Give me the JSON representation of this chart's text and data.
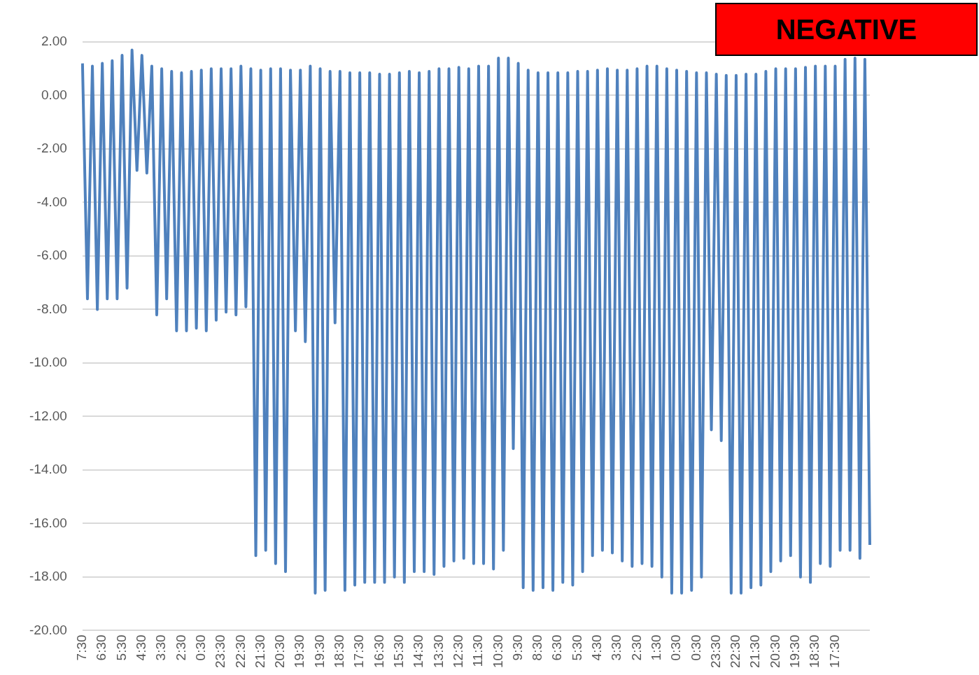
{
  "chart_data": {
    "type": "line",
    "annotations": [
      "NEGATIVE"
    ],
    "categories": [
      "7:30",
      null,
      null,
      null,
      "6:30",
      null,
      null,
      null,
      "5:30",
      null,
      null,
      null,
      "4:30",
      null,
      null,
      null,
      "3:30",
      null,
      null,
      null,
      "2:30",
      null,
      null,
      null,
      "0:30",
      null,
      null,
      null,
      "23:30",
      null,
      null,
      null,
      "22:30",
      null,
      null,
      null,
      "21:30",
      null,
      null,
      null,
      "20:30",
      null,
      null,
      null,
      "19:30",
      null,
      null,
      null,
      "19:30",
      null,
      null,
      null,
      "18:30",
      null,
      null,
      null,
      "17:30",
      null,
      null,
      null,
      "16:30",
      null,
      null,
      null,
      "15:30",
      null,
      null,
      null,
      "14:30",
      null,
      null,
      null,
      "13:30",
      null,
      null,
      null,
      "12:30",
      null,
      null,
      null,
      "11:30",
      null,
      null,
      null,
      "10:30",
      null,
      null,
      null,
      "9:30",
      null,
      null,
      null,
      "8:30",
      null,
      null,
      null,
      "6:30",
      null,
      null,
      null,
      "5:30",
      null,
      null,
      null,
      "4:30",
      null,
      null,
      null,
      "3:30",
      null,
      null,
      null,
      "2:30",
      null,
      null,
      null,
      "1:30",
      null,
      null,
      null,
      "0:30",
      null,
      null,
      null,
      "0:30",
      null,
      null,
      null,
      "23:30",
      null,
      null,
      null,
      "22:30",
      null,
      null,
      null,
      "21:30",
      null,
      null,
      null,
      "20:30",
      null,
      null,
      null,
      "19:30",
      null,
      null,
      null,
      "18:30",
      null,
      null,
      null,
      "17:30",
      null,
      null,
      null,
      null,
      null,
      null,
      null
    ],
    "series": [
      {
        "color": "#4f81bd",
        "values": [
          1.2,
          -7.6,
          1.1,
          -8.0,
          1.2,
          -7.6,
          1.3,
          -7.6,
          1.5,
          -7.2,
          1.7,
          -2.8,
          1.5,
          -2.9,
          1.1,
          -8.2,
          1.0,
          -7.6,
          0.9,
          -8.8,
          0.85,
          -8.8,
          0.9,
          -8.7,
          0.95,
          -8.8,
          1.0,
          -8.4,
          1.0,
          -8.1,
          1.0,
          -8.2,
          1.1,
          -7.9,
          1.0,
          -17.2,
          0.95,
          -17.0,
          1.0,
          -17.5,
          1.0,
          -17.8,
          0.95,
          -8.8,
          0.95,
          -9.2,
          1.1,
          -18.6,
          1.0,
          -18.5,
          0.9,
          -8.5,
          0.9,
          -18.5,
          0.85,
          -18.3,
          0.85,
          -18.2,
          0.85,
          -18.2,
          0.8,
          -18.2,
          0.8,
          -18.0,
          0.85,
          -18.2,
          0.9,
          -17.8,
          0.85,
          -17.8,
          0.9,
          -17.9,
          1.0,
          -17.6,
          1.0,
          -17.4,
          1.05,
          -17.3,
          1.0,
          -17.5,
          1.1,
          -17.5,
          1.1,
          -17.7,
          1.4,
          -17.0,
          1.4,
          -13.2,
          1.2,
          -18.4,
          0.95,
          -18.5,
          0.85,
          -18.4,
          0.85,
          -18.5,
          0.85,
          -18.2,
          0.85,
          -18.3,
          0.9,
          -17.8,
          0.9,
          -17.2,
          0.95,
          -17.0,
          1.0,
          -17.1,
          0.95,
          -17.4,
          0.95,
          -17.6,
          1.0,
          -17.5,
          1.1,
          -17.6,
          1.1,
          -18.0,
          1.0,
          -18.6,
          0.95,
          -18.6,
          0.9,
          -18.5,
          0.85,
          -18.0,
          0.85,
          -12.5,
          0.8,
          -12.9,
          0.75,
          -18.6,
          0.75,
          -18.6,
          0.8,
          -18.4,
          0.8,
          -18.3,
          0.9,
          -17.8,
          1.0,
          -17.4,
          1.0,
          -17.2,
          1.0,
          -18.0,
          1.05,
          -18.2,
          1.1,
          -17.5,
          1.1,
          -17.6,
          1.1,
          -17.0,
          1.35,
          -17.0,
          1.4,
          -17.3,
          1.35,
          -16.8
        ]
      }
    ],
    "ylim": [
      -20,
      2
    ],
    "yticks": [
      {
        "value": 2,
        "label": "2.00"
      },
      {
        "value": 0,
        "label": "0.00"
      },
      {
        "value": -2,
        "label": "-2.00"
      },
      {
        "value": -4,
        "label": "-4.00"
      },
      {
        "value": -6,
        "label": "-6.00"
      },
      {
        "value": -8,
        "label": "-8.00"
      },
      {
        "value": -10,
        "label": "-10.00"
      },
      {
        "value": -12,
        "label": "-12.00"
      },
      {
        "value": -14,
        "label": "-14.00"
      },
      {
        "value": -16,
        "label": "-16.00"
      },
      {
        "value": -18,
        "label": "-18.00"
      },
      {
        "value": -20,
        "label": "-20.00"
      }
    ],
    "grid": "y",
    "marker": "none"
  }
}
